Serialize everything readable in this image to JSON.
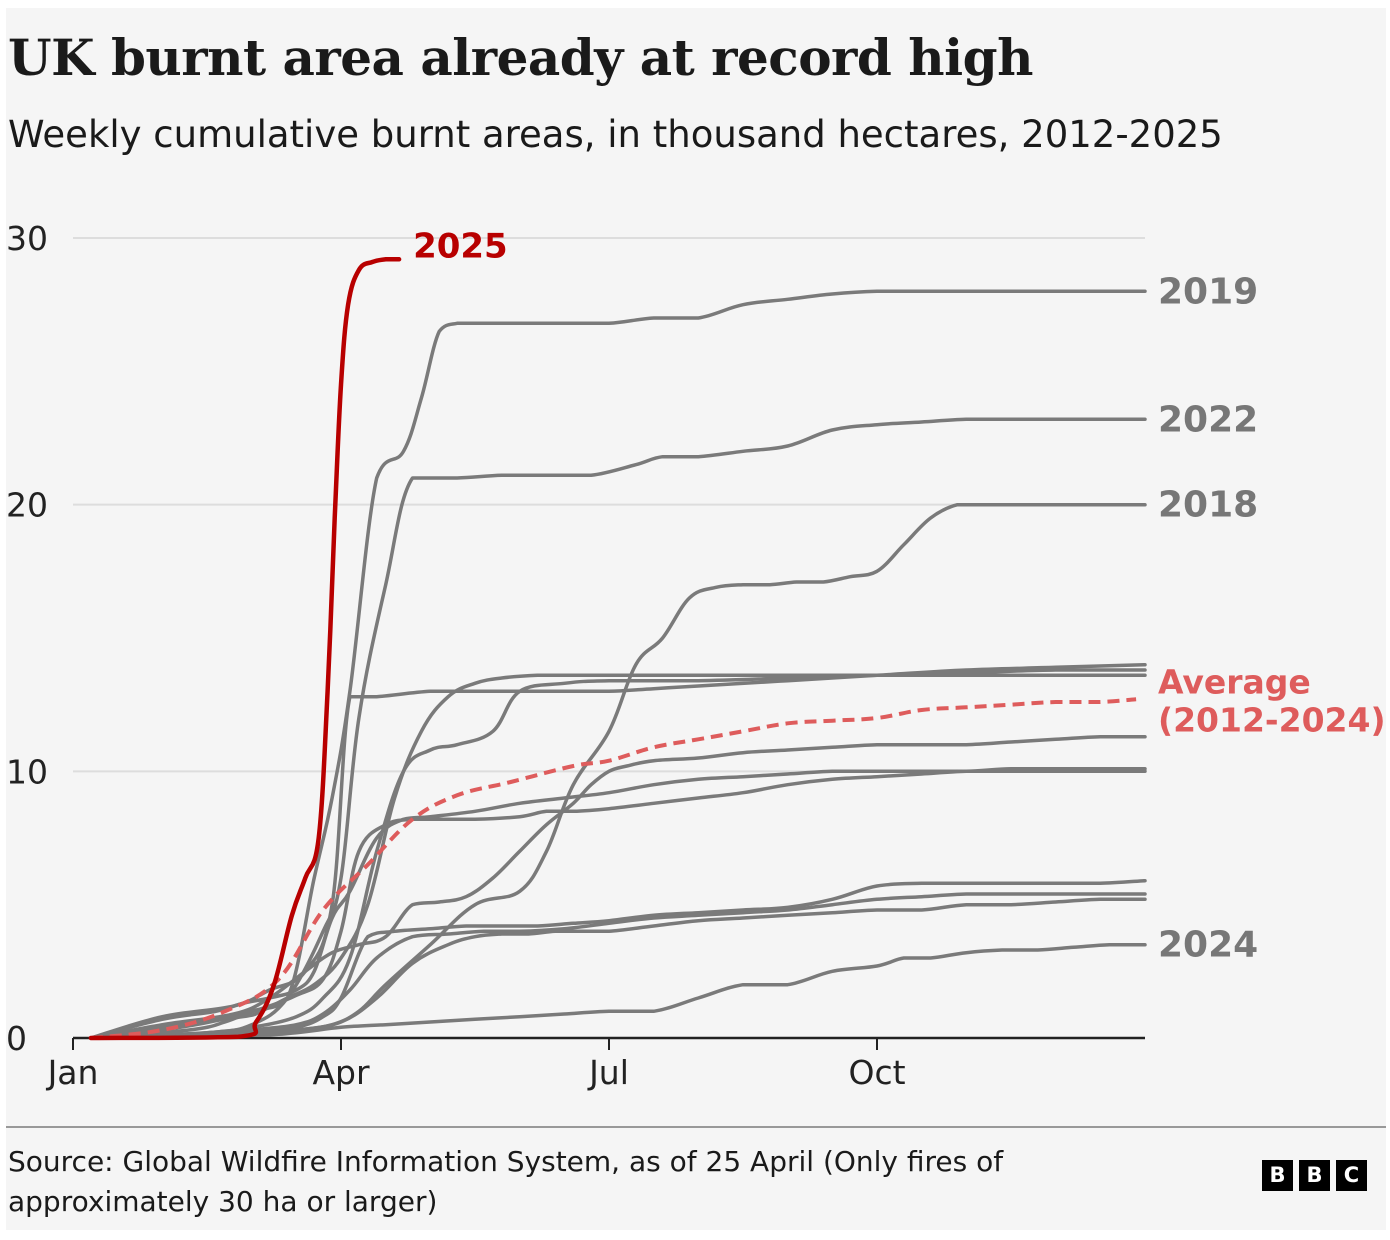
{
  "header": {
    "title": "UK burnt area already at record high",
    "subtitle": "Weekly cumulative burnt areas, in thousand hectares, 2012-2025"
  },
  "footer": {
    "source": "Source: Global Wildfire Information System, as of 25 April (Only fires of approximately 30 ha or larger)",
    "logo_letters": [
      "B",
      "B",
      "C"
    ]
  },
  "chart_data": {
    "type": "line",
    "title": "UK burnt area already at record high",
    "subtitle": "Weekly cumulative burnt areas, in thousand hectares, 2012-2025",
    "xlabel": "",
    "ylabel": "",
    "x_unit": "month of year",
    "xlim": [
      1,
      13
    ],
    "ylim": [
      0,
      30
    ],
    "yticks": [
      0,
      10,
      20,
      30
    ],
    "ytick_labels": [
      "0",
      "10",
      "20",
      "30"
    ],
    "xticks": [
      1,
      4,
      7,
      10
    ],
    "xtick_labels": [
      "Jan",
      "Apr",
      "Jul",
      "Oct"
    ],
    "grid": true,
    "legend": "direct labels at right end of lines",
    "colors": {
      "highlight": "#b80000",
      "average": "#de5c5c",
      "other_years": "#7a7a7a",
      "grid": "#dddddd"
    },
    "highlight_series": {
      "name": "2025",
      "color": "#b80000",
      "x": [
        1.2,
        2.85,
        3.05,
        3.25,
        3.45,
        3.6,
        3.75,
        3.85,
        3.93,
        4.0,
        4.08,
        4.2,
        4.35,
        4.5,
        4.65
      ],
      "y": [
        0.0,
        0.05,
        0.6,
        2.0,
        4.6,
        6.0,
        7.5,
        13.0,
        19.5,
        24.5,
        27.5,
        28.8,
        29.1,
        29.2,
        29.2
      ]
    },
    "average_series": {
      "name": "Average",
      "label_lines": [
        "Average",
        "(2012-2024)"
      ],
      "color": "#de5c5c",
      "x": [
        1.2,
        2.0,
        2.7,
        3.3,
        3.8,
        4.3,
        4.8,
        5.3,
        5.9,
        6.6,
        7.0,
        7.5,
        8.0,
        8.5,
        9.0,
        9.5,
        10.0,
        10.5,
        11.0,
        11.5,
        12.0,
        12.5,
        12.9
      ],
      "y": [
        0.0,
        0.3,
        1.0,
        2.2,
        4.8,
        6.5,
        8.2,
        9.1,
        9.6,
        10.2,
        10.4,
        10.9,
        11.2,
        11.5,
        11.8,
        11.9,
        12.0,
        12.3,
        12.4,
        12.5,
        12.6,
        12.6,
        12.7
      ]
    },
    "labeled_series_at_end": [
      {
        "name": "2019",
        "end_y": 28.0
      },
      {
        "name": "2022",
        "end_y": 23.2
      },
      {
        "name": "2018",
        "end_y": 20.0
      },
      {
        "name": "2024",
        "end_y": 3.5
      }
    ],
    "series": [
      {
        "name": "2019",
        "x": [
          1.2,
          2.3,
          2.7,
          3.0,
          3.4,
          3.7,
          3.9,
          4.1,
          4.4,
          4.7,
          4.9,
          5.1,
          5.3,
          5.5,
          5.7,
          6.0,
          6.5,
          7.0,
          7.5,
          8.0,
          8.5,
          9.0,
          9.5,
          10.0,
          10.5,
          11.0,
          11.5,
          12.0,
          12.5,
          13.0
        ],
        "y": [
          0.0,
          0.3,
          0.6,
          1.0,
          1.5,
          6.0,
          9.0,
          13.0,
          21.0,
          22.0,
          24.0,
          26.5,
          26.8,
          26.8,
          26.8,
          26.8,
          26.8,
          26.8,
          27.0,
          27.0,
          27.5,
          27.7,
          27.9,
          28.0,
          28.0,
          28.0,
          28.0,
          28.0,
          28.0,
          28.0
        ]
      },
      {
        "name": "2022",
        "x": [
          1.2,
          2.5,
          3.0,
          3.4,
          3.8,
          4.0,
          4.2,
          4.5,
          4.8,
          5.3,
          5.8,
          6.3,
          6.8,
          7.3,
          7.6,
          8.0,
          8.5,
          9.0,
          9.5,
          10.0,
          10.5,
          11.0,
          11.5,
          12.0,
          12.5,
          13.0
        ],
        "y": [
          0.0,
          0.2,
          0.5,
          1.5,
          4.0,
          6.0,
          12.0,
          17.0,
          21.0,
          21.0,
          21.1,
          21.1,
          21.1,
          21.5,
          21.8,
          21.8,
          22.0,
          22.2,
          22.8,
          23.0,
          23.1,
          23.2,
          23.2,
          23.2,
          23.2,
          23.2
        ]
      },
      {
        "name": "2018",
        "x": [
          1.2,
          2.5,
          3.0,
          3.5,
          3.9,
          4.2,
          4.5,
          5.0,
          5.5,
          6.0,
          6.3,
          6.6,
          7.0,
          7.3,
          7.6,
          7.9,
          8.2,
          8.5,
          8.8,
          9.1,
          9.4,
          9.7,
          10.0,
          10.3,
          10.6,
          10.9,
          11.2,
          11.6,
          12.0,
          12.5,
          13.0
        ],
        "y": [
          0.0,
          0.1,
          0.2,
          0.3,
          0.5,
          1.0,
          2.0,
          3.5,
          5.0,
          5.5,
          7.0,
          9.5,
          11.5,
          14.0,
          15.0,
          16.5,
          16.9,
          17.0,
          17.0,
          17.1,
          17.1,
          17.3,
          17.5,
          18.5,
          19.5,
          20.0,
          20.0,
          20.0,
          20.0,
          20.0,
          20.0
        ]
      },
      {
        "name": "2024",
        "x": [
          1.2,
          3.0,
          3.5,
          4.0,
          4.5,
          5.0,
          5.5,
          6.0,
          6.5,
          7.0,
          7.5,
          8.0,
          8.5,
          9.0,
          9.5,
          10.0,
          10.3,
          10.6,
          11.0,
          11.4,
          11.8,
          12.2,
          12.6,
          13.0
        ],
        "y": [
          0.0,
          0.1,
          0.2,
          0.4,
          0.5,
          0.6,
          0.7,
          0.8,
          0.9,
          1.0,
          1.0,
          1.5,
          2.0,
          2.0,
          2.5,
          2.7,
          3.0,
          3.0,
          3.2,
          3.3,
          3.3,
          3.4,
          3.5,
          3.5
        ]
      },
      {
        "x": [
          1.2,
          2.0,
          2.8,
          3.2,
          3.6,
          3.9,
          4.1,
          4.4,
          5.0,
          5.5,
          6.0,
          6.5,
          7.0,
          7.5,
          8.0,
          9.0,
          10.0,
          11.0,
          12.0,
          13.0
        ],
        "y": [
          0.0,
          0.8,
          1.2,
          1.8,
          2.5,
          5.0,
          12.8,
          12.8,
          13.0,
          13.0,
          13.0,
          13.0,
          13.0,
          13.1,
          13.2,
          13.4,
          13.6,
          13.8,
          13.9,
          14.0
        ]
      },
      {
        "x": [
          1.2,
          2.0,
          2.9,
          3.1,
          3.4,
          3.7,
          4.0,
          4.3,
          4.6,
          4.9,
          5.2,
          5.5,
          5.8,
          6.2,
          6.6,
          7.0,
          8.0,
          9.0,
          10.0,
          11.0,
          12.0,
          13.0
        ],
        "y": [
          0.0,
          0.4,
          0.8,
          1.0,
          1.5,
          2.0,
          3.0,
          5.0,
          9.0,
          11.5,
          12.8,
          13.3,
          13.5,
          13.6,
          13.6,
          13.6,
          13.6,
          13.6,
          13.6,
          13.7,
          13.8,
          13.8
        ]
      },
      {
        "x": [
          1.2,
          2.5,
          3.0,
          3.5,
          3.8,
          4.1,
          4.4,
          4.7,
          5.0,
          5.3,
          5.7,
          6.0,
          6.5,
          7.0,
          8.0,
          9.0,
          10.0,
          11.0,
          12.0,
          13.0
        ],
        "y": [
          0.0,
          0.2,
          0.4,
          0.8,
          1.5,
          3.0,
          7.0,
          10.0,
          10.8,
          11.0,
          11.5,
          13.0,
          13.3,
          13.4,
          13.4,
          13.5,
          13.6,
          13.6,
          13.6,
          13.6
        ]
      },
      {
        "x": [
          1.2,
          2.0,
          2.6,
          2.9,
          3.2,
          3.5,
          3.7,
          3.9,
          4.1,
          4.4,
          4.7,
          5.0,
          5.5,
          6.0,
          6.5,
          7.0,
          7.5,
          8.0,
          8.5,
          9.0,
          9.5,
          10.0,
          10.5,
          11.0,
          11.5,
          12.0,
          12.5,
          13.0
        ],
        "y": [
          0.0,
          0.7,
          1.0,
          1.3,
          1.5,
          1.8,
          2.5,
          4.5,
          5.5,
          7.5,
          8.2,
          8.3,
          8.5,
          8.8,
          9.0,
          9.2,
          9.5,
          9.7,
          9.8,
          9.9,
          10.0,
          10.0,
          10.0,
          10.0,
          10.1,
          10.1,
          10.1,
          10.1
        ]
      },
      {
        "x": [
          1.2,
          2.2,
          2.8,
          3.2,
          3.5,
          3.8,
          4.0,
          4.2,
          4.5,
          4.8,
          5.1,
          5.5,
          6.0,
          6.3,
          6.6,
          7.0,
          7.5,
          8.0,
          8.5,
          9.0,
          9.5,
          10.0,
          10.5,
          11.0,
          11.5,
          12.0,
          12.5,
          13.0
        ],
        "y": [
          0.0,
          0.4,
          0.8,
          1.2,
          1.6,
          2.2,
          4.0,
          7.0,
          8.0,
          8.2,
          8.2,
          8.2,
          8.3,
          8.5,
          8.5,
          8.6,
          8.8,
          9.0,
          9.2,
          9.5,
          9.7,
          9.8,
          9.9,
          10.0,
          10.0,
          10.0,
          10.0,
          10.0
        ]
      },
      {
        "x": [
          1.2,
          2.0,
          2.8,
          3.2,
          3.6,
          3.9,
          4.2,
          4.5,
          4.8,
          5.1,
          5.4,
          5.7,
          6.0,
          6.3,
          6.6,
          6.8,
          7.0,
          7.2,
          7.5,
          8.0,
          8.5,
          9.0,
          9.5,
          10.0,
          10.5,
          11.0,
          11.5,
          12.0,
          12.5,
          13.0
        ],
        "y": [
          0.0,
          0.5,
          0.9,
          1.5,
          2.5,
          3.2,
          3.5,
          3.8,
          5.0,
          5.1,
          5.3,
          6.0,
          7.0,
          8.0,
          8.8,
          9.5,
          10.0,
          10.2,
          10.4,
          10.5,
          10.7,
          10.8,
          10.9,
          11.0,
          11.0,
          11.0,
          11.1,
          11.2,
          11.3,
          11.3
        ]
      },
      {
        "x": [
          1.2,
          2.5,
          3.0,
          3.5,
          3.8,
          4.0,
          4.3,
          4.6,
          5.0,
          5.4,
          5.8,
          6.2,
          6.6,
          7.0,
          7.5,
          8.0,
          8.5,
          9.0,
          9.5,
          10.0,
          10.5,
          11.0,
          11.5,
          12.0,
          12.5,
          13.0
        ],
        "y": [
          0.0,
          0.1,
          0.2,
          0.4,
          0.8,
          1.5,
          3.8,
          4.0,
          4.1,
          4.2,
          4.2,
          4.2,
          4.3,
          4.4,
          4.6,
          4.7,
          4.8,
          4.9,
          5.2,
          5.7,
          5.8,
          5.8,
          5.8,
          5.8,
          5.8,
          5.9
        ]
      },
      {
        "x": [
          1.2,
          2.5,
          3.0,
          3.5,
          3.8,
          4.1,
          4.4,
          4.8,
          5.2,
          5.6,
          6.0,
          6.5,
          7.0,
          7.5,
          8.0,
          8.5,
          9.0,
          9.5,
          10.0,
          10.5,
          11.0,
          11.5,
          12.0,
          12.5,
          13.0
        ],
        "y": [
          0.0,
          0.1,
          0.3,
          0.5,
          0.9,
          1.8,
          3.0,
          3.8,
          3.9,
          4.0,
          4.0,
          4.1,
          4.3,
          4.5,
          4.6,
          4.7,
          4.8,
          5.0,
          5.2,
          5.3,
          5.4,
          5.4,
          5.4,
          5.4,
          5.4
        ]
      },
      {
        "x": [
          1.2,
          2.5,
          3.0,
          3.5,
          4.0,
          4.4,
          4.8,
          5.2,
          5.5,
          5.8,
          6.1,
          6.4,
          6.7,
          7.0,
          7.5,
          8.0,
          8.5,
          9.0,
          9.5,
          10.0,
          10.5,
          11.0,
          11.5,
          12.0,
          12.5,
          13.0
        ],
        "y": [
          0.0,
          0.1,
          0.2,
          0.3,
          0.6,
          1.5,
          2.8,
          3.5,
          3.8,
          3.9,
          3.9,
          4.0,
          4.0,
          4.0,
          4.2,
          4.4,
          4.5,
          4.6,
          4.7,
          4.8,
          4.8,
          5.0,
          5.0,
          5.1,
          5.2,
          5.2
        ]
      }
    ]
  }
}
